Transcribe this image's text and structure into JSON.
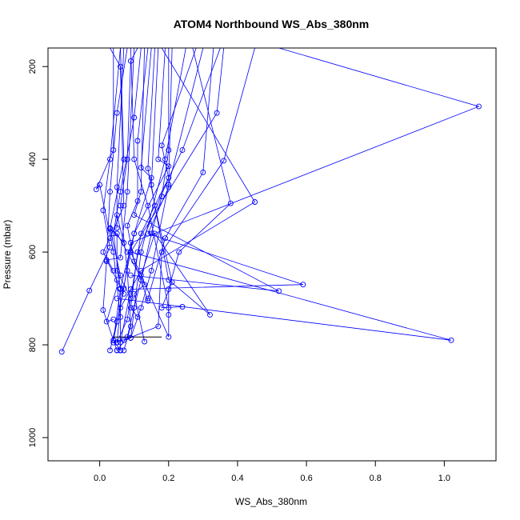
{
  "chart_data": {
    "type": "scatter",
    "title": "ATOM4 Northbound WS_Abs_380nm",
    "xlabel": "WS_Abs_380nm",
    "ylabel": "Pressure (mbar)",
    "xlim": [
      -0.15,
      1.15
    ],
    "ylim": [
      1050,
      160
    ],
    "y_reversed": true,
    "x_ticks": [
      "0.0",
      "0.2",
      "0.4",
      "0.6",
      "0.8",
      "1.0"
    ],
    "y_ticks": [
      "200",
      "400",
      "600",
      "800",
      "1000"
    ],
    "grid": false,
    "series_color": "#0000ff",
    "marker": "open-circle",
    "series": [
      {
        "values": [
          [
            0.08,
            160
          ],
          [
            0.05,
            300
          ],
          [
            0.03,
            470
          ],
          [
            0.02,
            620
          ],
          [
            0.01,
            725
          ],
          [
            0.04,
            790
          ],
          [
            0.05,
            812
          ]
        ]
      },
      {
        "values": [
          [
            0.12,
            160
          ],
          [
            0.1,
            310
          ],
          [
            0.06,
            470
          ],
          [
            0.04,
            560
          ],
          [
            0.06,
            680
          ],
          [
            0.04,
            790
          ],
          [
            0.06,
            812
          ]
        ]
      },
      {
        "values": [
          [
            0.06,
            160
          ],
          [
            0.03,
            400
          ],
          [
            0.01,
            510
          ],
          [
            0.03,
            590
          ],
          [
            -0.03,
            683
          ],
          [
            -0.11,
            815
          ]
        ]
      },
      {
        "values": [
          [
            0.11,
            160
          ],
          [
            0.09,
            188
          ],
          [
            0.08,
            400
          ],
          [
            0.06,
            500
          ],
          [
            0.08,
            640
          ],
          [
            0.09,
            760
          ],
          [
            0.07,
            812
          ]
        ]
      },
      {
        "values": [
          [
            0.2,
            160
          ],
          [
            0.2,
            380
          ],
          [
            0.18,
            480
          ],
          [
            0.15,
            560
          ],
          [
            0.12,
            660
          ],
          [
            0.1,
            720
          ],
          [
            0.08,
            783
          ],
          [
            0.05,
            812
          ]
        ]
      },
      {
        "values": [
          [
            0.15,
            160
          ],
          [
            0.12,
            418
          ],
          [
            0.15,
            440
          ],
          [
            0.1,
            560
          ],
          [
            0.05,
            750
          ],
          [
            0.03,
            812
          ]
        ]
      },
      {
        "values": [
          [
            0.25,
            160
          ],
          [
            0.19,
            400
          ],
          [
            0.12,
            600
          ],
          [
            0.09,
            785
          ],
          [
            0.04,
            795
          ]
        ]
      },
      {
        "values": [
          [
            0.3,
            160
          ],
          [
            0.2,
            455
          ],
          [
            0.15,
            640
          ],
          [
            0.12,
            720
          ],
          [
            0.09,
            785
          ]
        ]
      },
      {
        "values": [
          [
            0.35,
            160
          ],
          [
            0.24,
            380
          ],
          [
            0.12,
            560
          ],
          [
            0.08,
            745
          ],
          [
            0.05,
            795
          ]
        ]
      },
      {
        "values": [
          [
            0.52,
            160
          ],
          [
            1.1,
            286
          ],
          [
            0.09,
            580
          ],
          [
            0.07,
            678
          ],
          [
            0.04,
            790
          ]
        ]
      },
      {
        "values": [
          [
            0.45,
            160
          ],
          [
            0.36,
            403
          ],
          [
            0.18,
            600
          ],
          [
            0.17,
            760
          ],
          [
            0.07,
            790
          ]
        ]
      },
      {
        "values": [
          [
            0.33,
            160
          ],
          [
            0.3,
            428
          ],
          [
            0.19,
            570
          ],
          [
            0.14,
            700
          ]
        ]
      },
      {
        "values": [
          [
            0.27,
            160
          ],
          [
            0.38,
            495
          ],
          [
            0.23,
            600
          ],
          [
            0.2,
            680
          ],
          [
            0.2,
            735
          ]
        ]
      },
      {
        "values": [
          [
            0.18,
            160
          ],
          [
            0.45,
            492
          ],
          [
            0.12,
            640
          ],
          [
            0.06,
            720
          ],
          [
            0.05,
            795
          ]
        ]
      },
      {
        "values": [
          [
            0.36,
            160
          ],
          [
            0.34,
            300
          ],
          [
            0.09,
            600
          ],
          [
            1.02,
            790
          ],
          [
            0.05,
            700
          ]
        ]
      },
      {
        "values": [
          [
            0.21,
            160
          ],
          [
            0.2,
            460
          ],
          [
            0.14,
            560
          ],
          [
            0.59,
            670
          ],
          [
            0.09,
            680
          ],
          [
            0.06,
            795
          ]
        ]
      },
      {
        "values": [
          [
            0.13,
            160
          ],
          [
            0.12,
            470
          ],
          [
            0.1,
            520
          ],
          [
            0.52,
            684
          ],
          [
            0.09,
            650
          ]
        ]
      },
      {
        "values": [
          [
            0.16,
            160
          ],
          [
            0.14,
            420
          ],
          [
            0.2,
            660
          ],
          [
            0.32,
            735
          ],
          [
            0.16,
            560
          ],
          [
            0.12,
            650
          ]
        ]
      },
      {
        "values": [
          [
            0.09,
            160
          ],
          [
            0.1,
            400
          ],
          [
            0.14,
            500
          ],
          [
            0.2,
            720
          ],
          [
            0.2,
            783
          ],
          [
            0.09,
            600
          ]
        ]
      },
      {
        "values": [
          [
            0.1,
            160
          ],
          [
            0.08,
            470
          ],
          [
            0.06,
            612
          ],
          [
            0.02,
            617
          ],
          [
            0.05,
            660
          ],
          [
            0.07,
            690
          ]
        ]
      },
      {
        "values": [
          [
            0.07,
            160
          ],
          [
            0.05,
            460
          ],
          [
            0.05,
            548
          ],
          [
            0.03,
            548
          ],
          [
            0.07,
            580
          ],
          [
            0.05,
            520
          ]
        ]
      },
      {
        "values": [
          [
            0.14,
            160
          ],
          [
            0.11,
            360
          ],
          [
            0.11,
            490
          ],
          [
            0.08,
            543
          ],
          [
            0.1,
            620
          ],
          [
            0.14,
            705
          ]
        ]
      },
      {
        "values": [
          [
            0.04,
            160
          ],
          [
            0.04,
            380
          ],
          [
            -0.01,
            465
          ],
          [
            0.0,
            455
          ],
          [
            0.04,
            600
          ],
          [
            0.06,
            740
          ]
        ]
      },
      {
        "values": [
          [
            0.17,
            160
          ],
          [
            0.15,
            455
          ],
          [
            0.16,
            500
          ],
          [
            0.21,
            665
          ],
          [
            0.18,
            720
          ],
          [
            0.24,
            718
          ]
        ]
      },
      {
        "values": [
          [
            0.19,
            160
          ],
          [
            0.17,
            400
          ],
          [
            0.2,
            415
          ],
          [
            0.1,
            560
          ],
          [
            0.06,
            678
          ],
          [
            0.06,
            812
          ]
        ]
      },
      {
        "values": [
          [
            0.06,
            160
          ],
          [
            0.07,
            400
          ],
          [
            0.03,
            550
          ],
          [
            0.06,
            650
          ],
          [
            0.02,
            750
          ],
          [
            0.04,
            745
          ]
        ]
      },
      {
        "values": [
          [
            0.03,
            160
          ],
          [
            0.06,
            200
          ],
          [
            0.07,
            500
          ],
          [
            0.03,
            570
          ],
          [
            0.01,
            600
          ],
          [
            0.04,
            640
          ]
        ]
      },
      {
        "values": [
          [
            0.28,
            160
          ],
          [
            0.18,
            370
          ],
          [
            0.2,
            440
          ],
          [
            0.11,
            600
          ],
          [
            0.09,
            720
          ],
          [
            0.11,
            740
          ]
        ]
      },
      {
        "values": [
          [
            0.09,
            700
          ],
          [
            0.05,
            640
          ],
          [
            0.05,
            560
          ],
          [
            0.08,
            600
          ],
          [
            0.13,
            670
          ],
          [
            0.1,
            690
          ],
          [
            0.13,
            793
          ]
        ]
      }
    ],
    "h_segment": {
      "x": [
        0.04,
        0.18
      ],
      "y": 783
    }
  }
}
